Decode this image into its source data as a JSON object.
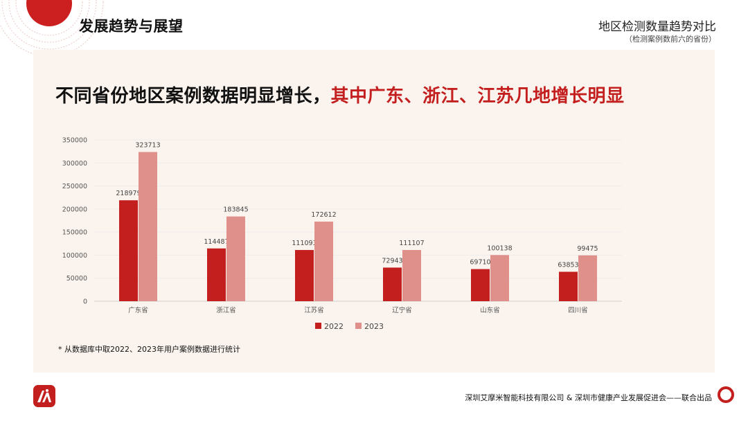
{
  "header": {
    "section_title": "发展趋势与展望",
    "slide_title": "地区检测数量趋势对比",
    "slide_subtitle": "（检测案例数前六的省份）"
  },
  "headline": {
    "part1": "不同省份地区案例数据明显增长，",
    "part2": "其中广东、浙江、江苏几地增长明显"
  },
  "chart_data": {
    "type": "bar",
    "categories": [
      "广东省",
      "浙江省",
      "江苏省",
      "辽宁省",
      "山东省",
      "四川省"
    ],
    "series": [
      {
        "name": "2022",
        "values": [
          218979,
          114487,
          111093,
          72943,
          69710,
          63853
        ],
        "color": "#c41f1f"
      },
      {
        "name": "2023",
        "values": [
          323713,
          183845,
          172612,
          111107,
          100138,
          99475
        ],
        "color": "#e0908a"
      }
    ],
    "ylim": [
      0,
      350000
    ],
    "yticks": [
      0,
      50000,
      100000,
      150000,
      200000,
      250000,
      300000,
      350000
    ],
    "grid": true,
    "legend": "bottom",
    "data_labels": true
  },
  "footnote": "* 从数据库中取2022、2023年用户案例数据进行统计",
  "footer": {
    "credit": "深圳艾摩米智能科技有限公司 & 深圳市健康产业发展促进会——联合出品"
  },
  "colors": {
    "accent": "#c41f1f",
    "accent_light": "#e0908a",
    "panel_bg": "#fbf4ee"
  },
  "icons": {
    "logo": "brand-logo-icon",
    "footer_ring": "ring-icon"
  }
}
